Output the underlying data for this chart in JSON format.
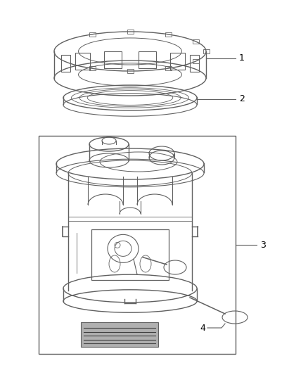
{
  "background_color": "#ffffff",
  "line_color": "#606060",
  "label_color": "#000000",
  "fig_width": 4.38,
  "fig_height": 5.33,
  "dpi": 100
}
